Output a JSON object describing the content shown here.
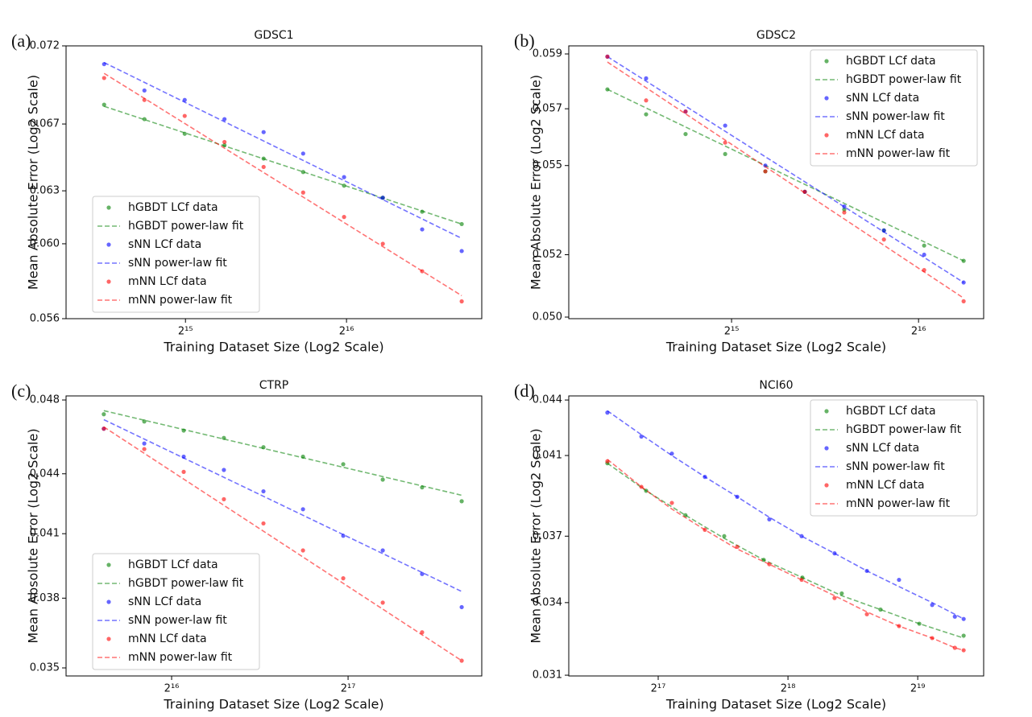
{
  "chart_data": [
    {
      "type": "line",
      "label": "(a)",
      "title": "GDSC1",
      "x_label": "Training Dataset Size (Log2 Scale)",
      "y_label": "Mean Absolute Error (Log2 Scale)",
      "xscale": "log2",
      "yscale": "log2",
      "grid": false,
      "legend": "lower left",
      "xlim": [
        19600,
        117300
      ],
      "ylim": [
        0.056,
        0.072
      ],
      "xticks": [
        {
          "value": 32768,
          "label": "2¹⁵"
        },
        {
          "value": 65536,
          "label": "2¹⁶"
        }
      ],
      "yticks": [
        0.072,
        0.067,
        0.063,
        {
          "value": 0.06,
          "label": "0.060"
        },
        0.056
      ],
      "x": [
        23090,
        27460,
        32660,
        38760,
        45870,
        54380,
        64850,
        76620,
        90760,
        107600
      ],
      "series": [
        {
          "name": "hGBDT LCf data",
          "color": "green",
          "style": "scatter",
          "values": [
            0.0682,
            0.0673,
            0.0664,
            0.0657,
            0.0649,
            0.0641,
            0.0633,
            0.0626,
            0.0618,
            0.0611
          ]
        },
        {
          "name": "hGBDT power-law fit",
          "color": "green",
          "style": "dashed",
          "x": [
            23090,
            107600
          ],
          "values": [
            0.0681,
            0.0611
          ]
        },
        {
          "name": "sNN LCf data",
          "color": "blue",
          "style": "scatter",
          "values": [
            0.0708,
            0.0691,
            0.0685,
            0.0673,
            0.0665,
            0.0652,
            0.0638,
            0.0626,
            0.0608,
            0.0596
          ]
        },
        {
          "name": "sNN power-law fit",
          "color": "blue",
          "style": "dashed",
          "x": [
            23090,
            107600
          ],
          "values": [
            0.0709,
            0.0603
          ]
        },
        {
          "name": "mNN LCf data",
          "color": "red",
          "style": "scatter",
          "values": [
            0.0699,
            0.0685,
            0.0675,
            0.0659,
            0.0644,
            0.0629,
            0.0615,
            0.06,
            0.0585,
            0.0569
          ]
        },
        {
          "name": "mNN power-law fit",
          "color": "red",
          "style": "dashed",
          "x": [
            23090,
            107600
          ],
          "values": [
            0.0702,
            0.0572
          ]
        }
      ]
    },
    {
      "type": "line",
      "label": "(b)",
      "title": "GDSC2",
      "x_label": "Training Dataset Size (Log2 Scale)",
      "y_label": "Mean Absolute Error (Log2 Scale)",
      "xscale": "log2",
      "yscale": "log2",
      "grid": false,
      "legend": "upper right",
      "xlim": [
        17920,
        83430
      ],
      "ylim": [
        0.04995,
        0.0593
      ],
      "xticks": [
        {
          "value": 32768,
          "label": "2¹⁵"
        },
        {
          "value": 65536,
          "label": "2¹⁶"
        }
      ],
      "yticks": [
        0.059,
        0.057,
        0.055,
        0.052,
        {
          "value": 0.05,
          "label": "0.050"
        }
      ],
      "x": [
        20680,
        23870,
        27630,
        32000,
        37140,
        42990,
        49760,
        57640,
        66910,
        77460
      ],
      "series": [
        {
          "name": "hGBDT LCf data",
          "color": "green",
          "style": "scatter",
          "values": [
            0.0577,
            0.0568,
            0.0561,
            0.0554,
            0.0548,
            0.0541,
            0.0535,
            0.0528,
            0.0523,
            0.0518
          ]
        },
        {
          "name": "hGBDT power-law fit",
          "color": "green",
          "style": "dashed",
          "x": [
            20680,
            77460
          ],
          "values": [
            0.0577,
            0.0518
          ]
        },
        {
          "name": "sNN LCf data",
          "color": "blue",
          "style": "scatter",
          "values": [
            0.0589,
            0.0581,
            0.0569,
            0.0564,
            0.055,
            0.0541,
            0.0536,
            0.0528,
            0.052,
            0.0511
          ]
        },
        {
          "name": "sNN power-law fit",
          "color": "blue",
          "style": "dashed",
          "x": [
            20680,
            77460
          ],
          "values": [
            0.0589,
            0.0511
          ]
        },
        {
          "name": "mNN LCf data",
          "color": "red",
          "style": "scatter",
          "values": [
            0.0589,
            0.0573,
            0.0569,
            0.0558,
            0.0548,
            0.0541,
            0.0534,
            0.0525,
            0.0515,
            0.0505
          ]
        },
        {
          "name": "mNN power-law fit",
          "color": "red",
          "style": "dashed",
          "x": [
            20680,
            77460
          ],
          "values": [
            0.0587,
            0.0506
          ]
        }
      ]
    },
    {
      "type": "line",
      "label": "(c)",
      "title": "CTRP",
      "x_label": "Training Dataset Size (Log2 Scale)",
      "y_label": "Mean Absolute Error (Log2 Scale)",
      "xscale": "log2",
      "yscale": "log2",
      "grid": false,
      "legend": "lower left",
      "xlim": [
        43290,
        221600
      ],
      "ylim": [
        0.03467,
        0.04823
      ],
      "xticks": [
        {
          "value": 65536,
          "label": "2¹⁶"
        },
        {
          "value": 131072,
          "label": "2¹⁷"
        }
      ],
      "yticks": [
        0.048,
        0.044,
        0.041,
        0.038,
        0.035
      ],
      "x": [
        50210,
        58860,
        68720,
        80470,
        94000,
        109800,
        128600,
        150200,
        175300,
        204800
      ],
      "series": [
        {
          "name": "hGBDT LCf data",
          "color": "green",
          "style": "scatter",
          "values": [
            0.0472,
            0.0468,
            0.0463,
            0.0459,
            0.0454,
            0.0449,
            0.0445,
            0.0437,
            0.0433,
            0.0426
          ]
        },
        {
          "name": "hGBDT power-law fit",
          "color": "green",
          "style": "dashed",
          "x": [
            50210,
            204800
          ],
          "values": [
            0.0474,
            0.0429
          ]
        },
        {
          "name": "sNN LCf data",
          "color": "blue",
          "style": "scatter",
          "values": [
            0.0464,
            0.0456,
            0.0449,
            0.0442,
            0.0431,
            0.0422,
            0.0409,
            0.0402,
            0.0391,
            0.0376
          ]
        },
        {
          "name": "sNN power-law fit",
          "color": "blue",
          "style": "dashed",
          "x": [
            50210,
            204800
          ],
          "values": [
            0.0469,
            0.0383
          ]
        },
        {
          "name": "mNN LCf data",
          "color": "red",
          "style": "scatter",
          "values": [
            0.0464,
            0.0453,
            0.0441,
            0.0427,
            0.0415,
            0.0402,
            0.0389,
            0.0378,
            0.0365,
            0.0353
          ]
        },
        {
          "name": "mNN power-law fit",
          "color": "red",
          "style": "dashed",
          "x": [
            50210,
            204800
          ],
          "values": [
            0.0465,
            0.0353
          ]
        }
      ]
    },
    {
      "type": "line",
      "label": "(d)",
      "title": "NCI60",
      "x_label": "Training Dataset Size (Log2 Scale)",
      "y_label": "Mean Absolute Error (Log2 Scale)",
      "xscale": "log2",
      "yscale": "log2",
      "grid": false,
      "legend": "upper right",
      "xlim": [
        81290,
        745600
      ],
      "ylim": [
        0.03097,
        0.04423
      ],
      "xticks": [
        {
          "value": 131072,
          "label": "2¹⁷"
        },
        {
          "value": 262144,
          "label": "2¹⁸"
        },
        {
          "value": 524288,
          "label": "2¹⁹"
        }
      ],
      "yticks": [
        0.044,
        0.041,
        0.037,
        0.034,
        0.031
      ],
      "x": [
        99910,
        119800,
        141000,
        168200,
        199900,
        237300,
        282000,
        336200,
        399600,
        474400,
        566300,
        639300,
        670000
      ],
      "series": [
        {
          "name": "hGBDT LCf data",
          "color": "green",
          "style": "scatter",
          "x": [
            99910,
            122900,
            151600,
            186500,
            230300,
            283100,
            349400,
            429800,
            528700,
            670000
          ],
          "values": [
            0.0406,
            0.0392,
            0.038,
            0.037,
            0.0359,
            0.0351,
            0.0344,
            0.0337,
            0.0331,
            0.0326
          ]
        },
        {
          "name": "hGBDT power-law fit",
          "color": "green",
          "style": "dashed",
          "x": [
            99910,
            122900,
            151600,
            186500,
            230300,
            283100,
            349400,
            429800,
            528700,
            670000
          ],
          "values": [
            0.0406,
            0.0392,
            0.038,
            0.0369,
            0.0359,
            0.0351,
            0.0343,
            0.0337,
            0.0331,
            0.0325
          ]
        },
        {
          "name": "sNN LCf data",
          "color": "blue",
          "style": "scatter",
          "values": [
            0.0433,
            0.042,
            0.0411,
            0.0399,
            0.0389,
            0.0378,
            0.037,
            0.0362,
            0.0354,
            0.035,
            0.0339,
            0.0334,
            0.0333
          ]
        },
        {
          "name": "sNN power-law fit",
          "color": "blue",
          "style": "dashed",
          "values": [
            0.0434,
            0.0421,
            0.041,
            0.0399,
            0.0389,
            0.0379,
            0.037,
            0.0362,
            0.0354,
            0.0347,
            0.034,
            0.0335,
            0.0333
          ]
        },
        {
          "name": "mNN LCf data",
          "color": "red",
          "style": "scatter",
          "values": [
            0.0407,
            0.0394,
            0.0386,
            0.0373,
            0.0365,
            0.0357,
            0.035,
            0.0342,
            0.0335,
            0.033,
            0.0325,
            0.0321,
            0.032
          ]
        },
        {
          "name": "mNN power-law fit",
          "color": "red",
          "style": "dashed",
          "values": [
            0.0408,
            0.0394,
            0.0383,
            0.0373,
            0.0364,
            0.0357,
            0.035,
            0.0343,
            0.0336,
            0.033,
            0.0325,
            0.0321,
            0.032
          ]
        }
      ]
    }
  ]
}
